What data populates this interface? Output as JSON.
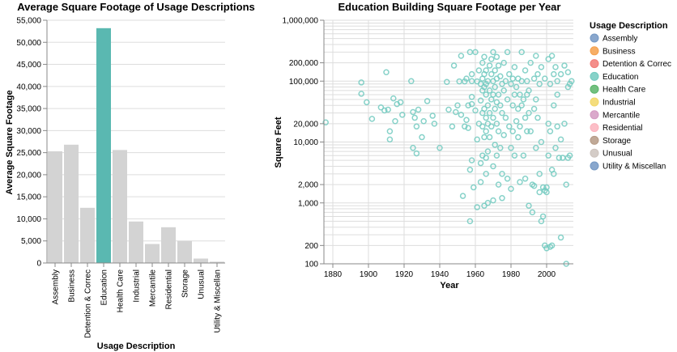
{
  "chart_data": [
    {
      "type": "bar",
      "title": "Average Square Footage of Usage Descriptions",
      "xlabel": "Usage Description",
      "ylabel": "Average Square Footage",
      "categories": [
        "Assembly",
        "Business",
        "Detention & Correc",
        "Education",
        "Health Care",
        "Industrial",
        "Mercantile",
        "Residential",
        "Storage",
        "Unusual",
        "Utility & Miscellan"
      ],
      "values": [
        25300,
        26800,
        12500,
        53200,
        25600,
        9400,
        4300,
        8100,
        5000,
        1000,
        300
      ],
      "highlight": "Education",
      "ylim": [
        0,
        55000
      ],
      "yticks": [
        0,
        5000,
        10000,
        15000,
        20000,
        25000,
        30000,
        35000,
        40000,
        45000,
        50000,
        55000
      ],
      "ytick_labels": [
        "0",
        "5,000",
        "10,000",
        "15,000",
        "20,000",
        "25,000",
        "30,000",
        "35,000",
        "40,000",
        "45,000",
        "50,000",
        "55,000"
      ],
      "grid": true,
      "colors": {
        "highlight": "#5ab8b1",
        "default": "#d3d3d3"
      }
    },
    {
      "type": "scatter",
      "title": "Education Building Square Footage per Year",
      "xlabel": "Year",
      "ylabel": "Square Feet",
      "yscale": "log",
      "xlim": [
        1875,
        2015
      ],
      "ylim": [
        100,
        1000000
      ],
      "xticks": [
        1880,
        1900,
        1920,
        1940,
        1960,
        1980,
        2000
      ],
      "xtick_labels": [
        "1880",
        "1900",
        "1920",
        "1940",
        "1960",
        "1980",
        "2000"
      ],
      "yticks": [
        100,
        200,
        1000,
        2000,
        10000,
        20000,
        100000,
        200000,
        1000000
      ],
      "ytick_labels": [
        "100",
        "200",
        "1,000",
        "2,000",
        "10,000",
        "20,000",
        "100,000",
        "200,000",
        "1,000,000"
      ],
      "grid": true,
      "color": "#72cac0",
      "points": [
        [
          1876,
          21000
        ],
        [
          1896,
          95000
        ],
        [
          1896,
          62000
        ],
        [
          1899,
          45000
        ],
        [
          1902,
          24000
        ],
        [
          1907,
          37000
        ],
        [
          1909,
          33000
        ],
        [
          1910,
          140000
        ],
        [
          1911,
          34000
        ],
        [
          1912,
          15000
        ],
        [
          1912,
          11000
        ],
        [
          1914,
          52000
        ],
        [
          1915,
          22000
        ],
        [
          1916,
          42000
        ],
        [
          1918,
          45000
        ],
        [
          1919,
          28000
        ],
        [
          1924,
          100000
        ],
        [
          1925,
          31000
        ],
        [
          1925,
          8000
        ],
        [
          1926,
          25000
        ],
        [
          1927,
          6500
        ],
        [
          1927,
          18000
        ],
        [
          1928,
          34000
        ],
        [
          1930,
          12000
        ],
        [
          1931,
          22000
        ],
        [
          1933,
          47000
        ],
        [
          1936,
          27000
        ],
        [
          1937,
          20000
        ],
        [
          1940,
          8000
        ],
        [
          1944,
          97000
        ],
        [
          1945,
          34000
        ],
        [
          1947,
          18000
        ],
        [
          1948,
          180000
        ],
        [
          1949,
          31000
        ],
        [
          1950,
          40000
        ],
        [
          1951,
          99000
        ],
        [
          1952,
          260000
        ],
        [
          1952,
          28000
        ],
        [
          1953,
          1300
        ],
        [
          1954,
          99000
        ],
        [
          1954,
          18000
        ],
        [
          1955,
          110000
        ],
        [
          1955,
          23000
        ],
        [
          1956,
          40000
        ],
        [
          1956,
          17000
        ],
        [
          1957,
          300000
        ],
        [
          1957,
          3500
        ],
        [
          1957,
          500
        ],
        [
          1958,
          130000
        ],
        [
          1958,
          100000
        ],
        [
          1958,
          55000
        ],
        [
          1958,
          42000
        ],
        [
          1958,
          5000
        ],
        [
          1959,
          1800
        ],
        [
          1960,
          300000
        ],
        [
          1960,
          33000
        ],
        [
          1961,
          99000
        ],
        [
          1961,
          11000
        ],
        [
          1961,
          850
        ],
        [
          1962,
          150000
        ],
        [
          1962,
          20000
        ],
        [
          1963,
          90000
        ],
        [
          1963,
          48000
        ],
        [
          1963,
          4500
        ],
        [
          1963,
          2200
        ],
        [
          1964,
          200000
        ],
        [
          1964,
          110000
        ],
        [
          1964,
          70000
        ],
        [
          1964,
          30000
        ],
        [
          1964,
          18000
        ],
        [
          1964,
          6000
        ],
        [
          1965,
          250000
        ],
        [
          1965,
          130000
        ],
        [
          1965,
          80000
        ],
        [
          1965,
          35000
        ],
        [
          1965,
          12000
        ],
        [
          1965,
          900
        ],
        [
          1966,
          150000
        ],
        [
          1966,
          90000
        ],
        [
          1966,
          60000
        ],
        [
          1966,
          25000
        ],
        [
          1966,
          15000
        ],
        [
          1966,
          5500
        ],
        [
          1966,
          3000
        ],
        [
          1967,
          100000
        ],
        [
          1967,
          40000
        ],
        [
          1967,
          20000
        ],
        [
          1967,
          7000
        ],
        [
          1967,
          1000
        ],
        [
          1968,
          180000
        ],
        [
          1968,
          70000
        ],
        [
          1968,
          30000
        ],
        [
          1968,
          12000
        ],
        [
          1969,
          230000
        ],
        [
          1969,
          130000
        ],
        [
          1969,
          50000
        ],
        [
          1969,
          18000
        ],
        [
          1970,
          300000
        ],
        [
          1970,
          100000
        ],
        [
          1970,
          60000
        ],
        [
          1970,
          25000
        ],
        [
          1970,
          4000
        ],
        [
          1970,
          1100
        ],
        [
          1971,
          150000
        ],
        [
          1971,
          80000
        ],
        [
          1971,
          35000
        ],
        [
          1971,
          9000
        ],
        [
          1972,
          250000
        ],
        [
          1972,
          110000
        ],
        [
          1972,
          45000
        ],
        [
          1972,
          20000
        ],
        [
          1972,
          6000
        ],
        [
          1973,
          180000
        ],
        [
          1973,
          60000
        ],
        [
          1973,
          15000
        ],
        [
          1973,
          2000
        ],
        [
          1974,
          120000
        ],
        [
          1974,
          40000
        ],
        [
          1974,
          8000
        ],
        [
          1975,
          90000
        ],
        [
          1975,
          30000
        ],
        [
          1975,
          3000
        ],
        [
          1975,
          1200
        ],
        [
          1976,
          200000
        ],
        [
          1976,
          70000
        ],
        [
          1976,
          13000
        ],
        [
          1977,
          100000
        ],
        [
          1977,
          25000
        ],
        [
          1978,
          300000
        ],
        [
          1978,
          50000
        ],
        [
          1978,
          2500
        ],
        [
          1979,
          130000
        ],
        [
          1979,
          18000
        ],
        [
          1980,
          90000
        ],
        [
          1980,
          8000
        ],
        [
          1980,
          1700
        ],
        [
          1981,
          110000
        ],
        [
          1981,
          40000
        ],
        [
          1981,
          15000
        ],
        [
          1982,
          170000
        ],
        [
          1982,
          60000
        ],
        [
          1982,
          6000
        ],
        [
          1983,
          80000
        ],
        [
          1983,
          22000
        ],
        [
          1984,
          110000
        ],
        [
          1984,
          35000
        ],
        [
          1984,
          12000
        ],
        [
          1985,
          60000
        ],
        [
          1985,
          18000
        ],
        [
          1985,
          2200
        ],
        [
          1986,
          300000
        ],
        [
          1986,
          100000
        ],
        [
          1986,
          40000
        ],
        [
          1987,
          50000
        ],
        [
          1987,
          6000
        ],
        [
          1988,
          150000
        ],
        [
          1988,
          25000
        ],
        [
          1988,
          2500
        ],
        [
          1989,
          100000
        ],
        [
          1989,
          60000
        ],
        [
          1989,
          15000
        ],
        [
          1990,
          70000
        ],
        [
          1990,
          30000
        ],
        [
          1990,
          900
        ],
        [
          1991,
          200000
        ],
        [
          1991,
          15000
        ],
        [
          1992,
          2000
        ],
        [
          1992,
          700
        ],
        [
          1993,
          110000
        ],
        [
          1993,
          35000
        ],
        [
          1993,
          1900
        ],
        [
          1994,
          260000
        ],
        [
          1994,
          50000
        ],
        [
          1994,
          8000
        ],
        [
          1995,
          130000
        ],
        [
          1995,
          25000
        ],
        [
          1996,
          90000
        ],
        [
          1996,
          3000
        ],
        [
          1996,
          1500
        ],
        [
          1997,
          170000
        ],
        [
          1997,
          10000
        ],
        [
          1997,
          500
        ],
        [
          1998,
          1800
        ],
        [
          1998,
          600
        ],
        [
          1999,
          110000
        ],
        [
          1999,
          1600
        ],
        [
          1999,
          200
        ],
        [
          2000,
          1800
        ],
        [
          2000,
          1500
        ],
        [
          2000,
          180
        ],
        [
          2001,
          230000
        ],
        [
          2001,
          20000
        ],
        [
          2001,
          6000
        ],
        [
          2002,
          90000
        ],
        [
          2002,
          15000
        ],
        [
          2002,
          190
        ],
        [
          2003,
          260000
        ],
        [
          2003,
          3500
        ],
        [
          2003,
          200
        ],
        [
          2004,
          130000
        ],
        [
          2004,
          40000
        ],
        [
          2004,
          3000
        ],
        [
          2005,
          170000
        ],
        [
          2005,
          8000
        ],
        [
          2006,
          100000
        ],
        [
          2006,
          60000
        ],
        [
          2006,
          18000
        ],
        [
          2007,
          5500
        ],
        [
          2008,
          130000
        ],
        [
          2008,
          11000
        ],
        [
          2008,
          270
        ],
        [
          2009,
          5500
        ],
        [
          2010,
          180000
        ],
        [
          2010,
          20000
        ],
        [
          2011,
          100
        ],
        [
          2011,
          2000
        ],
        [
          2012,
          140000
        ],
        [
          2012,
          80000
        ],
        [
          2012,
          5500
        ],
        [
          2013,
          90000
        ],
        [
          2013,
          6000
        ],
        [
          2014,
          100000
        ]
      ]
    }
  ],
  "legend": {
    "title": "Usage Description",
    "items": [
      {
        "label": "Assembly",
        "color": "#7498c4"
      },
      {
        "label": "Business",
        "color": "#f5a04b"
      },
      {
        "label": "Detention & Correc",
        "color": "#f27a75"
      },
      {
        "label": "Education",
        "color": "#72cac0"
      },
      {
        "label": "Health Care",
        "color": "#5bb56a"
      },
      {
        "label": "Industrial",
        "color": "#f2d766"
      },
      {
        "label": "Mercantile",
        "color": "#d39ac2"
      },
      {
        "label": "Residential",
        "color": "#fbb3bd"
      },
      {
        "label": "Storage",
        "color": "#b59a85"
      },
      {
        "label": "Unusual",
        "color": "#cdc3bd"
      },
      {
        "label": "Utility & Miscellan",
        "color": "#7498c4"
      }
    ]
  }
}
